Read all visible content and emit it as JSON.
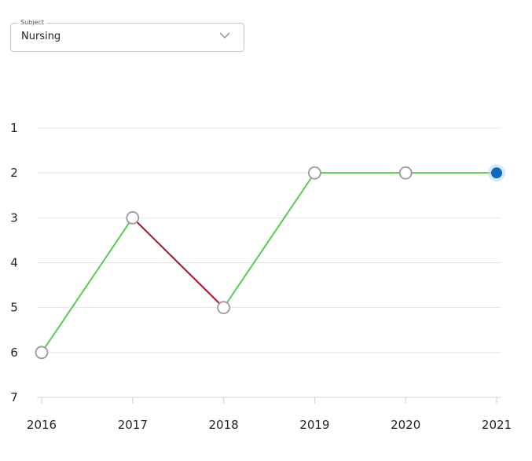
{
  "subject_select": {
    "legend": "Subject",
    "value": "Nursing",
    "icon": "chevron-down-icon"
  },
  "colors": {
    "rise": "#5cc94f",
    "fall": "#a8131f",
    "grid": "#e4e4e4",
    "marker_fill": "#ffffff",
    "marker_stroke": "#9a9a9a",
    "current_fill": "#0f6abf",
    "current_glow": "#bcd8f3"
  },
  "chart_data": {
    "type": "line",
    "title": "",
    "xlabel": "",
    "ylabel": "",
    "x": [
      "2016",
      "2017",
      "2018",
      "2019",
      "2020",
      "2021"
    ],
    "series": [
      {
        "values": [
          6,
          3,
          5,
          2,
          2,
          2
        ]
      }
    ],
    "yticks": [
      "1",
      "2",
      "3",
      "4",
      "5",
      "6",
      "7"
    ],
    "ylim": [
      1,
      7
    ],
    "y_inverted": true,
    "grid": true,
    "highlighted_point": "2021"
  }
}
